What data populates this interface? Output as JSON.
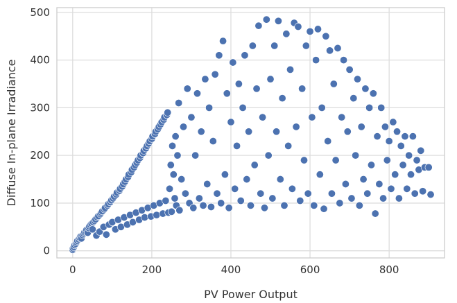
{
  "chart_data": {
    "type": "scatter",
    "title": "",
    "xlabel": "PV Power Output",
    "ylabel": "Diffuse In-plane Irradiance",
    "xlim": [
      -40,
      940
    ],
    "ylim": [
      -15,
      510
    ],
    "x_ticks": [
      0,
      200,
      400,
      600,
      800
    ],
    "y_ticks": [
      0,
      100,
      200,
      300,
      400,
      500
    ],
    "grid": true,
    "legend": "none",
    "style": {
      "point_color": "#4c72b0",
      "point_edge_color": "#ffffff",
      "grid_color": "#dddddd",
      "frame_color": "#cccccc",
      "background": "#ffffff"
    },
    "series": [
      {
        "points": [
          [
            0,
            2
          ],
          [
            1,
            5
          ],
          [
            3,
            8
          ],
          [
            5,
            12
          ],
          [
            8,
            15
          ],
          [
            10,
            18
          ],
          [
            12,
            21
          ],
          [
            15,
            24
          ],
          [
            18,
            27
          ],
          [
            20,
            30
          ],
          [
            22,
            26
          ],
          [
            25,
            33
          ],
          [
            28,
            36
          ],
          [
            30,
            39
          ],
          [
            33,
            41
          ],
          [
            35,
            44
          ],
          [
            38,
            38
          ],
          [
            40,
            48
          ],
          [
            42,
            51
          ],
          [
            45,
            54
          ],
          [
            48,
            57
          ],
          [
            50,
            45
          ],
          [
            52,
            60
          ],
          [
            55,
            63
          ],
          [
            58,
            66
          ],
          [
            60,
            32
          ],
          [
            62,
            70
          ],
          [
            65,
            73
          ],
          [
            68,
            40
          ],
          [
            70,
            77
          ],
          [
            72,
            80
          ],
          [
            75,
            83
          ],
          [
            78,
            50
          ],
          [
            80,
            87
          ],
          [
            82,
            90
          ],
          [
            85,
            34
          ],
          [
            88,
            95
          ],
          [
            90,
            98
          ],
          [
            92,
            55
          ],
          [
            95,
            102
          ],
          [
            98,
            106
          ],
          [
            100,
            60
          ],
          [
            102,
            110
          ],
          [
            105,
            114
          ],
          [
            108,
            45
          ],
          [
            110,
            118
          ],
          [
            112,
            122
          ],
          [
            115,
            65
          ],
          [
            118,
            126
          ],
          [
            120,
            130
          ],
          [
            122,
            50
          ],
          [
            125,
            135
          ],
          [
            128,
            140
          ],
          [
            130,
            70
          ],
          [
            132,
            145
          ],
          [
            135,
            150
          ],
          [
            138,
            55
          ],
          [
            140,
            155
          ],
          [
            142,
            160
          ],
          [
            145,
            75
          ],
          [
            148,
            165
          ],
          [
            150,
            170
          ],
          [
            152,
            60
          ],
          [
            155,
            175
          ],
          [
            158,
            180
          ],
          [
            160,
            80
          ],
          [
            162,
            185
          ],
          [
            165,
            190
          ],
          [
            168,
            65
          ],
          [
            170,
            195
          ],
          [
            172,
            200
          ],
          [
            175,
            85
          ],
          [
            178,
            205
          ],
          [
            180,
            210
          ],
          [
            182,
            70
          ],
          [
            185,
            215
          ],
          [
            188,
            220
          ],
          [
            190,
            90
          ],
          [
            192,
            225
          ],
          [
            195,
            230
          ],
          [
            198,
            72
          ],
          [
            200,
            235
          ],
          [
            202,
            240
          ],
          [
            205,
            95
          ],
          [
            208,
            245
          ],
          [
            210,
            250
          ],
          [
            212,
            75
          ],
          [
            215,
            255
          ],
          [
            218,
            260
          ],
          [
            220,
            100
          ],
          [
            222,
            265
          ],
          [
            225,
            270
          ],
          [
            228,
            78
          ],
          [
            230,
            275
          ],
          [
            232,
            280
          ],
          [
            235,
            105
          ],
          [
            238,
            285
          ],
          [
            240,
            290
          ],
          [
            242,
            80
          ],
          [
            245,
            130
          ],
          [
            248,
            180
          ],
          [
            250,
            82
          ],
          [
            252,
            220
          ],
          [
            255,
            160
          ],
          [
            258,
            110
          ],
          [
            260,
            240
          ],
          [
            262,
            95
          ],
          [
            265,
            200
          ],
          [
            268,
            310
          ],
          [
            270,
            85
          ],
          [
            275,
            150
          ],
          [
            280,
            260
          ],
          [
            285,
            120
          ],
          [
            290,
            340
          ],
          [
            295,
            100
          ],
          [
            300,
            280
          ],
          [
            305,
            90
          ],
          [
            310,
            200
          ],
          [
            315,
            330
          ],
          [
            320,
            110
          ],
          [
            325,
            250
          ],
          [
            330,
            95
          ],
          [
            335,
            360
          ],
          [
            340,
            140
          ],
          [
            345,
            300
          ],
          [
            350,
            92
          ],
          [
            355,
            230
          ],
          [
            360,
            370
          ],
          [
            365,
            120
          ],
          [
            370,
            410
          ],
          [
            375,
            100
          ],
          [
            380,
            440
          ],
          [
            385,
            160
          ],
          [
            390,
            330
          ],
          [
            395,
            90
          ],
          [
            400,
            270
          ],
          [
            405,
            395
          ],
          [
            410,
            130
          ],
          [
            415,
            220
          ],
          [
            420,
            350
          ],
          [
            425,
            105
          ],
          [
            430,
            300
          ],
          [
            435,
            410
          ],
          [
            440,
            150
          ],
          [
            445,
            250
          ],
          [
            450,
            95
          ],
          [
            455,
            430
          ],
          [
            460,
            180
          ],
          [
            465,
            340
          ],
          [
            470,
            472
          ],
          [
            475,
            120
          ],
          [
            480,
            280
          ],
          [
            485,
            90
          ],
          [
            490,
            485
          ],
          [
            495,
            200
          ],
          [
            500,
            360
          ],
          [
            505,
            110
          ],
          [
            510,
            430
          ],
          [
            515,
            250
          ],
          [
            520,
            482
          ],
          [
            525,
            150
          ],
          [
            530,
            320
          ],
          [
            535,
            95
          ],
          [
            540,
            455
          ],
          [
            545,
            220
          ],
          [
            550,
            380
          ],
          [
            555,
            130
          ],
          [
            560,
            478
          ],
          [
            565,
            260
          ],
          [
            570,
            470
          ],
          [
            575,
            105
          ],
          [
            580,
            340
          ],
          [
            585,
            190
          ],
          [
            590,
            430
          ],
          [
            595,
            120
          ],
          [
            600,
            460
          ],
          [
            605,
            280
          ],
          [
            610,
            95
          ],
          [
            615,
            400
          ],
          [
            620,
            465
          ],
          [
            625,
            160
          ],
          [
            630,
            300
          ],
          [
            635,
            88
          ],
          [
            640,
            450
          ],
          [
            645,
            230
          ],
          [
            650,
            420
          ],
          [
            655,
            120
          ],
          [
            660,
            350
          ],
          [
            665,
            190
          ],
          [
            670,
            425
          ],
          [
            675,
            100
          ],
          [
            680,
            280
          ],
          [
            685,
            400
          ],
          [
            690,
            140
          ],
          [
            695,
            250
          ],
          [
            700,
            380
          ],
          [
            705,
            110
          ],
          [
            710,
            320
          ],
          [
            715,
            200
          ],
          [
            720,
            360
          ],
          [
            725,
            95
          ],
          [
            730,
            260
          ],
          [
            735,
            150
          ],
          [
            740,
            340
          ],
          [
            745,
            120
          ],
          [
            750,
            300
          ],
          [
            755,
            180
          ],
          [
            760,
            330
          ],
          [
            765,
            78
          ],
          [
            770,
            240
          ],
          [
            775,
            140
          ],
          [
            780,
            300
          ],
          [
            785,
            110
          ],
          [
            790,
            260
          ],
          [
            795,
            190
          ],
          [
            800,
            230
          ],
          [
            805,
            130
          ],
          [
            810,
            270
          ],
          [
            815,
            160
          ],
          [
            820,
            250
          ],
          [
            825,
            110
          ],
          [
            830,
            220
          ],
          [
            835,
            180
          ],
          [
            840,
            240
          ],
          [
            845,
            130
          ],
          [
            850,
            200
          ],
          [
            855,
            160
          ],
          [
            860,
            240
          ],
          [
            865,
            120
          ],
          [
            870,
            190
          ],
          [
            875,
            170
          ],
          [
            880,
            210
          ],
          [
            885,
            125
          ],
          [
            890,
            175
          ],
          [
            900,
            175
          ],
          [
            905,
            118
          ]
        ]
      }
    ]
  }
}
